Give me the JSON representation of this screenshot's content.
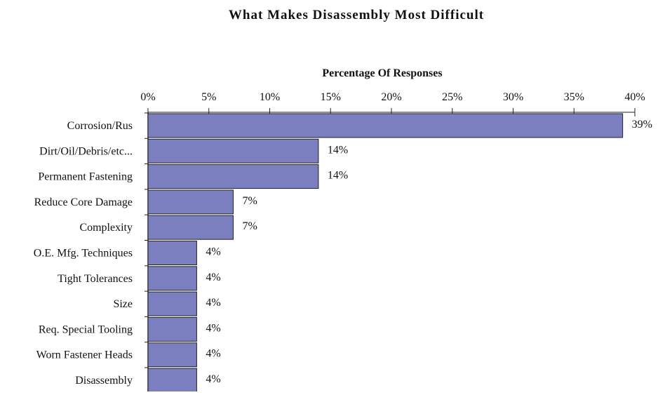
{
  "chart_data": {
    "type": "bar",
    "orientation": "horizontal",
    "title": "What Makes Disassembly Most Difficult",
    "xlabel": "Percentage Of Responses",
    "xlabel_position": "top",
    "categories": [
      "Corrosion/Rus",
      "Dirt/Oil/Debris/etc...",
      "Permanent Fastening",
      "Reduce Core Damage",
      "Complexity",
      "O.E. Mfg. Techniques",
      "Tight Tolerances",
      "Size",
      "Req. Special Tooling",
      "Worn Fastener Heads",
      "Disassembly"
    ],
    "values": [
      39,
      14,
      14,
      7,
      7,
      4,
      4,
      4,
      4,
      4,
      4
    ],
    "value_labels": [
      "39%",
      "14%",
      "14%",
      "7%",
      "7%",
      "4%",
      "4%",
      "4%",
      "4%",
      "4%",
      "4%"
    ],
    "xlim": [
      0,
      40
    ],
    "xticks": [
      0,
      5,
      10,
      15,
      20,
      25,
      30,
      35,
      40
    ],
    "xtick_labels": [
      "0%",
      "5%",
      "10%",
      "15%",
      "20%",
      "25%",
      "30%",
      "35%",
      "40%"
    ],
    "bar_color": "#7b7fbf",
    "bar_edge_color": "#222222",
    "grid": false,
    "legend": "none"
  }
}
